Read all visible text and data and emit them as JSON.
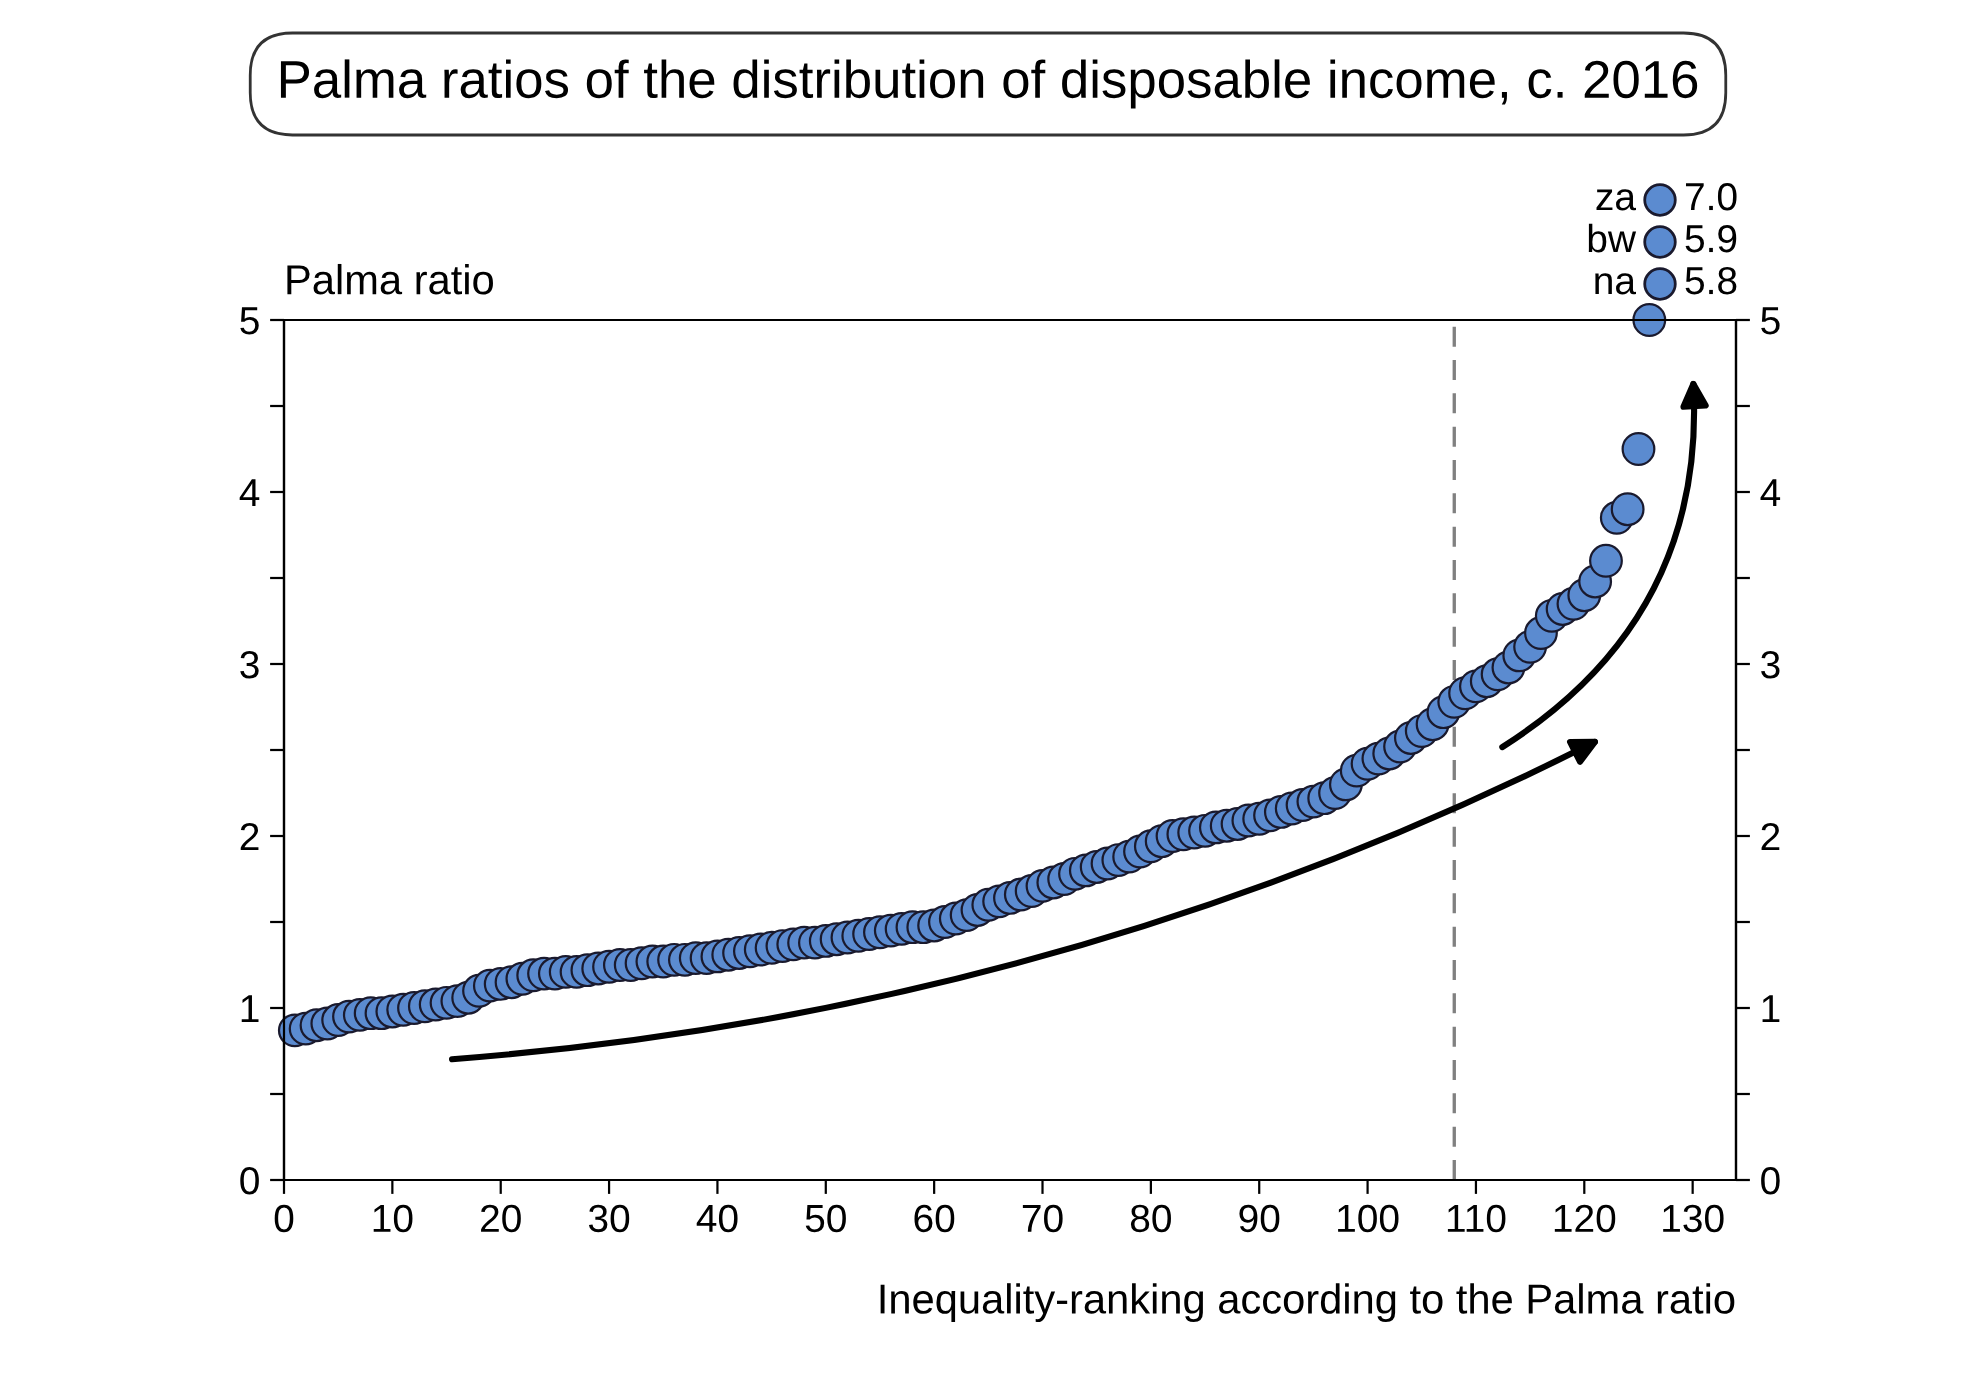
{
  "chart_data": {
    "type": "scatter",
    "title": "Palma ratios of the distribution of disposable income, c. 2016",
    "xlabel": "Inequality-ranking according to the Palma ratio",
    "ylabel": "Palma ratio",
    "x": [
      1,
      2,
      3,
      4,
      5,
      6,
      7,
      8,
      9,
      10,
      11,
      12,
      13,
      14,
      15,
      16,
      17,
      18,
      19,
      20,
      21,
      22,
      23,
      24,
      25,
      26,
      27,
      28,
      29,
      30,
      31,
      32,
      33,
      34,
      35,
      36,
      37,
      38,
      39,
      40,
      41,
      42,
      43,
      44,
      45,
      46,
      47,
      48,
      49,
      50,
      51,
      52,
      53,
      54,
      55,
      56,
      57,
      58,
      59,
      60,
      61,
      62,
      63,
      64,
      65,
      66,
      67,
      68,
      69,
      70,
      71,
      72,
      73,
      74,
      75,
      76,
      77,
      78,
      79,
      80,
      81,
      82,
      83,
      84,
      85,
      86,
      87,
      88,
      89,
      90,
      91,
      92,
      93,
      94,
      95,
      96,
      97,
      98,
      99,
      100,
      101,
      102,
      103,
      104,
      105,
      106,
      107,
      108,
      109,
      110,
      111,
      112,
      113,
      114,
      115,
      116,
      117,
      118,
      119,
      120,
      121,
      122,
      123,
      124,
      125,
      126
    ],
    "series": [
      {
        "color": "#5b8bd0",
        "marker": "circle",
        "values": [
          0.87,
          0.88,
          0.9,
          0.91,
          0.93,
          0.95,
          0.96,
          0.97,
          0.97,
          0.98,
          0.99,
          1.0,
          1.01,
          1.02,
          1.03,
          1.04,
          1.06,
          1.1,
          1.13,
          1.14,
          1.15,
          1.17,
          1.19,
          1.2,
          1.2,
          1.21,
          1.21,
          1.22,
          1.23,
          1.24,
          1.25,
          1.25,
          1.26,
          1.27,
          1.27,
          1.28,
          1.28,
          1.29,
          1.29,
          1.3,
          1.31,
          1.32,
          1.33,
          1.34,
          1.35,
          1.36,
          1.37,
          1.38,
          1.38,
          1.39,
          1.4,
          1.41,
          1.42,
          1.43,
          1.44,
          1.45,
          1.46,
          1.47,
          1.47,
          1.48,
          1.5,
          1.52,
          1.54,
          1.57,
          1.6,
          1.62,
          1.64,
          1.66,
          1.68,
          1.71,
          1.73,
          1.75,
          1.78,
          1.8,
          1.82,
          1.84,
          1.86,
          1.88,
          1.91,
          1.94,
          1.97,
          2.0,
          2.01,
          2.02,
          2.03,
          2.05,
          2.06,
          2.07,
          2.09,
          2.1,
          2.12,
          2.14,
          2.16,
          2.18,
          2.2,
          2.22,
          2.25,
          2.3,
          2.38,
          2.42,
          2.45,
          2.48,
          2.52,
          2.57,
          2.61,
          2.65,
          2.72,
          2.78,
          2.83,
          2.87,
          2.9,
          2.94,
          2.98,
          3.05,
          3.1,
          3.18,
          3.28,
          3.32,
          3.35,
          3.4,
          3.48,
          3.6,
          3.85,
          3.9,
          4.25,
          5.0
        ]
      }
    ],
    "xlim": [
      0,
      134
    ],
    "xticks": [
      0,
      10,
      20,
      30,
      40,
      50,
      60,
      70,
      80,
      90,
      100,
      110,
      120,
      130
    ],
    "ylim": [
      0,
      5
    ],
    "yticks": [
      0,
      {
        "value": 0.5,
        "label": null
      },
      1,
      {
        "value": 1.5,
        "label": null
      },
      2,
      {
        "value": 2.5,
        "label": null
      },
      3,
      {
        "value": 3.5,
        "label": null
      },
      4,
      {
        "value": 4.5,
        "label": null
      },
      5
    ],
    "y2lim": [
      0,
      5
    ],
    "y2ticks": [
      0,
      {
        "value": 0.5,
        "label": null
      },
      1,
      {
        "value": 1.5,
        "label": null
      },
      2,
      {
        "value": 2.5,
        "label": null
      },
      3,
      {
        "value": 3.5,
        "label": null
      },
      4,
      {
        "value": 4.5,
        "label": null
      },
      5
    ],
    "ref_lines": [
      {
        "axis": "x",
        "value": 108,
        "color": "#808080",
        "line_style": "dashed"
      }
    ],
    "annotations": [
      "za",
      "7.0",
      "bw",
      "5.9",
      "na",
      "5.8"
    ],
    "grid": false,
    "legend": false
  }
}
